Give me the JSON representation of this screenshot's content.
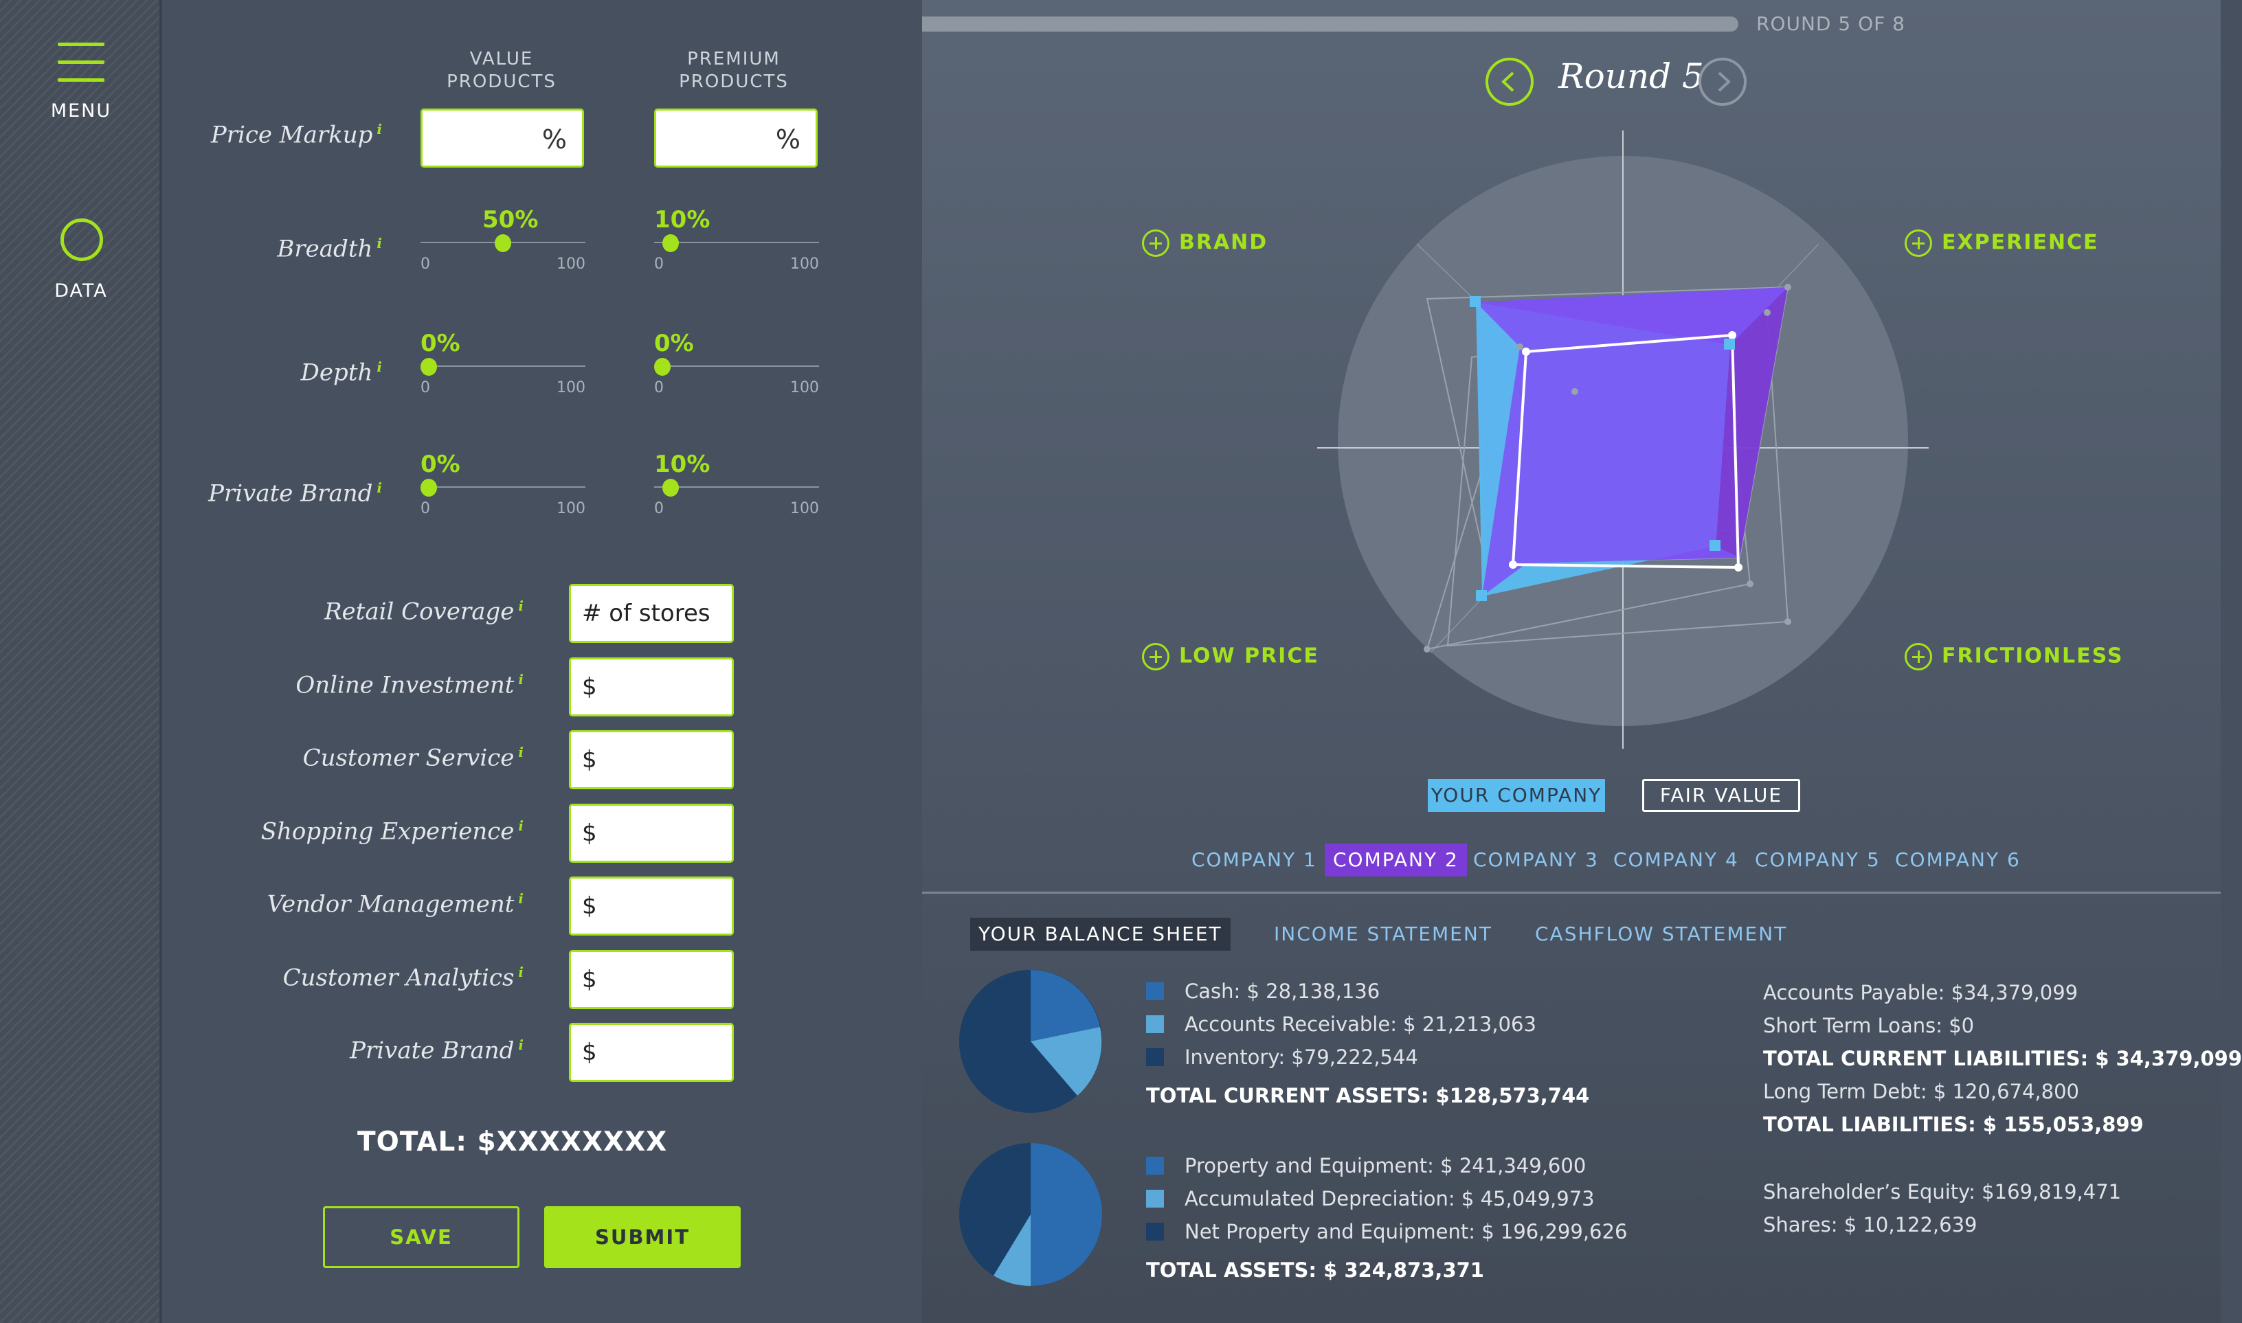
{
  "sidebar": {
    "menu_label": "MENU",
    "data_label": "DATA"
  },
  "form": {
    "col_value": "VALUE\nPRODUCTS",
    "col_premium": "PREMIUM\nPRODUCTS",
    "price_markup": {
      "label": "Price Markup",
      "unit": "%"
    },
    "sliders": [
      {
        "label": "Breadth",
        "value_pct": "50%",
        "value": 50,
        "premium_pct": "10%",
        "premium": 10
      },
      {
        "label": "Depth",
        "value_pct": "0%",
        "value": 0,
        "premium_pct": "0%",
        "premium": 0
      },
      {
        "label": "Private Brand",
        "value_pct": "0%",
        "value": 0,
        "premium_pct": "10%",
        "premium": 10
      }
    ],
    "slider_min": "0",
    "slider_max": "100",
    "info_mark": "i",
    "investments": [
      {
        "label": "Retail Coverage",
        "value": "# of stores"
      },
      {
        "label": "Online Investment",
        "value": "$"
      },
      {
        "label": "Customer Service",
        "value": "$"
      },
      {
        "label": "Shopping Experience",
        "value": "$"
      },
      {
        "label": "Vendor Management",
        "value": "$"
      },
      {
        "label": "Customer Analytics",
        "value": "$"
      },
      {
        "label": "Private Brand",
        "value": "$"
      }
    ],
    "total": "TOTAL: $XXXXXXXX",
    "save_label": "SAVE",
    "submit_label": "SUBMIT"
  },
  "round": {
    "progress_label": "ROUND 5 OF 8",
    "progress": 0.625,
    "title": "Round 5"
  },
  "radar": {
    "axes": [
      "BRAND",
      "EXPERIENCE",
      "LOW PRICE",
      "FRICTIONLESS"
    ],
    "legend_your_company": "YOUR COMPANY",
    "legend_fair_value": "FAIR VALUE",
    "colors": {
      "your_company": "#5bbcf0",
      "selected": "#7b3bd6",
      "fair_value": "#ffffff",
      "accent": "#a4e31c"
    }
  },
  "companies": [
    "COMPANY 1",
    "COMPANY 2",
    "COMPANY 3",
    "COMPANY 4",
    "COMPANY 5",
    "COMPANY 6"
  ],
  "selected_company": "COMPANY 2",
  "tabs": [
    "YOUR BALANCE SHEET",
    "INCOME STATEMENT",
    "CASHFLOW STATEMENT"
  ],
  "balance": {
    "current_assets": [
      {
        "label": "Cash: $ 28,138,136",
        "color": "#2b6cb0"
      },
      {
        "label": "Accounts Receivable: $ 21,213,063",
        "color": "#5aa9d8"
      },
      {
        "label": "Inventory: $79,222,544",
        "color": "#1b3f66"
      }
    ],
    "total_current_assets": "TOTAL CURRENT ASSETS: $128,573,744",
    "fixed_assets": [
      {
        "label": "Property and Equipment: $ 241,349,600",
        "color": "#2b6cb0"
      },
      {
        "label": "Accumulated Depreciation: $ 45,049,973",
        "color": "#5aa9d8"
      },
      {
        "label": "Net Property and Equipment: $ 196,299,626",
        "color": "#1b3f66"
      }
    ],
    "total_assets": "TOTAL ASSETS: $ 324,873,371",
    "liabilities": [
      {
        "label": "Accounts Payable: $34,379,099",
        "bold": false
      },
      {
        "label": "Short Term Loans: $0",
        "bold": false
      },
      {
        "label": "TOTAL CURRENT LIABILITIES: $ 34,379,099",
        "bold": true
      },
      {
        "label": "Long Term Debt: $ 120,674,800",
        "bold": false
      },
      {
        "label": "TOTAL LIABILITIES: $ 155,053,899",
        "bold": true
      },
      {
        "label": "Shareholder’s Equity: $169,819,471",
        "bold": false
      },
      {
        "label": "Shares: $ 10,122,639",
        "bold": false
      }
    ]
  }
}
